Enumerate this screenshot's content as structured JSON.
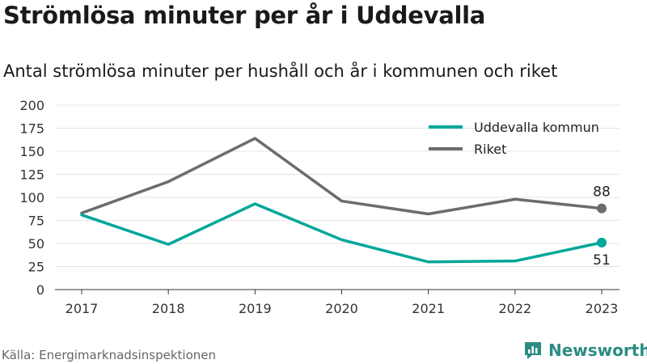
{
  "title": "Strömlösa minuter per år i Uddevalla",
  "subtitle": "Antal strömlösa minuter per hushåll och år i kommunen och riket",
  "source": "Källa: Energimarknadsinspektionen",
  "brand": {
    "name": "Newsworthy",
    "icon": "newsworthy-logo-icon",
    "color": "#2b8c84"
  },
  "chart_data": {
    "type": "line",
    "x": [
      "2017",
      "2018",
      "2019",
      "2020",
      "2021",
      "2022",
      "2023"
    ],
    "series": [
      {
        "name": "Uddevalla kommun",
        "color": "#00a69a",
        "values": [
          81,
          49,
          93,
          54,
          30,
          31,
          51
        ],
        "end_label": "51"
      },
      {
        "name": "Riket",
        "color": "#6b6b70",
        "values": [
          83,
          117,
          164,
          96,
          82,
          98,
          88
        ],
        "end_label": "88"
      }
    ],
    "ylim": [
      0,
      200
    ],
    "yticks": [
      0,
      25,
      50,
      75,
      100,
      125,
      150,
      175,
      200
    ],
    "grid": true,
    "legend": "top-right"
  }
}
